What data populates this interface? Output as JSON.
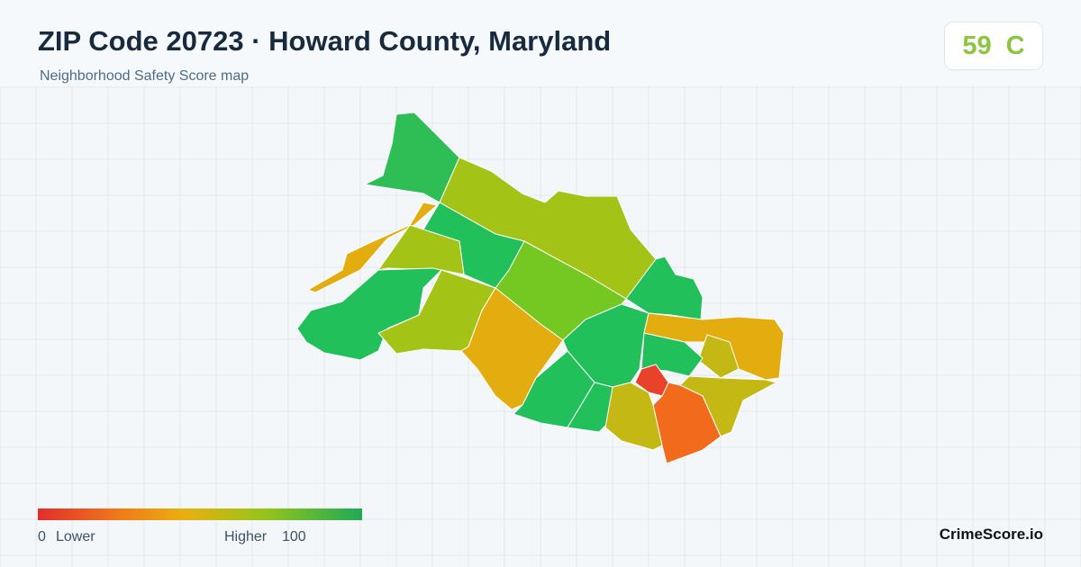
{
  "header": {
    "title": "ZIP Code 20723 · Howard County, Maryland",
    "subtitle": "Neighborhood Safety Score map"
  },
  "score": {
    "value": 59,
    "grade": "C"
  },
  "legend": {
    "min": 0,
    "min_label": "Lower",
    "max_label": "Higher",
    "max": 100
  },
  "brand": "CrimeScore.io"
}
